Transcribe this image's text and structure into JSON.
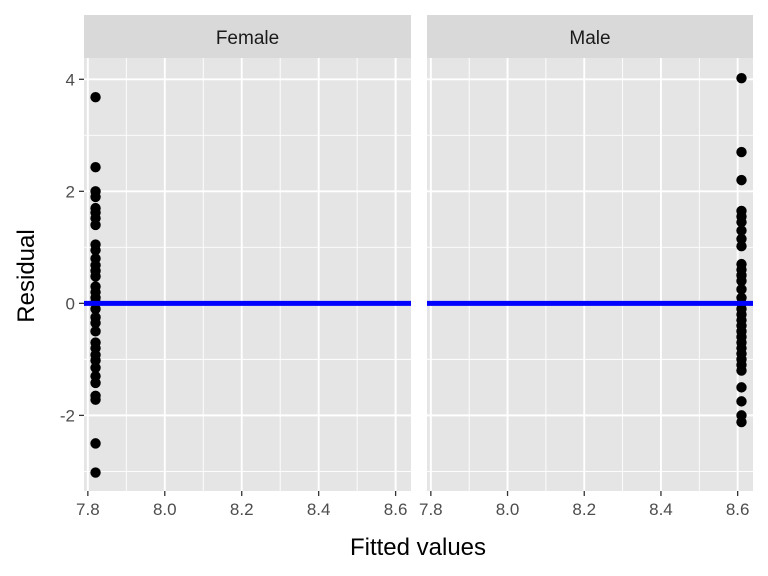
{
  "chart_data": {
    "type": "scatter",
    "xlabel": "Fitted values",
    "ylabel": "Residual",
    "xlim": [
      7.79,
      8.64
    ],
    "ylim": [
      -3.35,
      4.38
    ],
    "x_ticks": [
      7.8,
      8.0,
      8.2,
      8.4,
      8.6
    ],
    "x_tick_labels": [
      "7.8",
      "8.0",
      "8.2",
      "8.4",
      "8.6"
    ],
    "y_ticks": [
      -2,
      0,
      2,
      4
    ],
    "y_tick_labels": [
      "-2",
      "0",
      "2",
      "4"
    ],
    "grid": true,
    "reference_line": {
      "y": 0,
      "color": "#0000ff"
    },
    "colors": {
      "panel_background": "#e5e5e5",
      "strip_background": "#d9d9d9",
      "grid": "#ffffff",
      "points": "#000000",
      "reference_line": "#0000ff"
    },
    "panels": [
      {
        "strip": "Female",
        "x": 7.82,
        "y": [
          3.68,
          2.43,
          2.0,
          1.9,
          1.7,
          1.62,
          1.52,
          1.4,
          1.05,
          0.95,
          0.8,
          0.68,
          0.58,
          0.48,
          0.3,
          0.2,
          0.1,
          0.02,
          -0.1,
          -0.25,
          -0.35,
          -0.5,
          -0.7,
          -0.8,
          -0.92,
          -1.02,
          -1.15,
          -1.3,
          -1.42,
          -1.65,
          -1.72,
          -2.5,
          -3.02
        ]
      },
      {
        "strip": "Male",
        "x": 8.61,
        "y": [
          4.02,
          2.7,
          2.2,
          1.65,
          1.55,
          1.45,
          1.3,
          1.15,
          1.02,
          0.7,
          0.6,
          0.5,
          0.4,
          0.25,
          0.1,
          0.0,
          -0.1,
          -0.2,
          -0.3,
          -0.4,
          -0.5,
          -0.6,
          -0.7,
          -0.8,
          -0.9,
          -1.0,
          -1.1,
          -1.2,
          -1.5,
          -1.75,
          -2.0,
          -2.12
        ]
      }
    ]
  }
}
